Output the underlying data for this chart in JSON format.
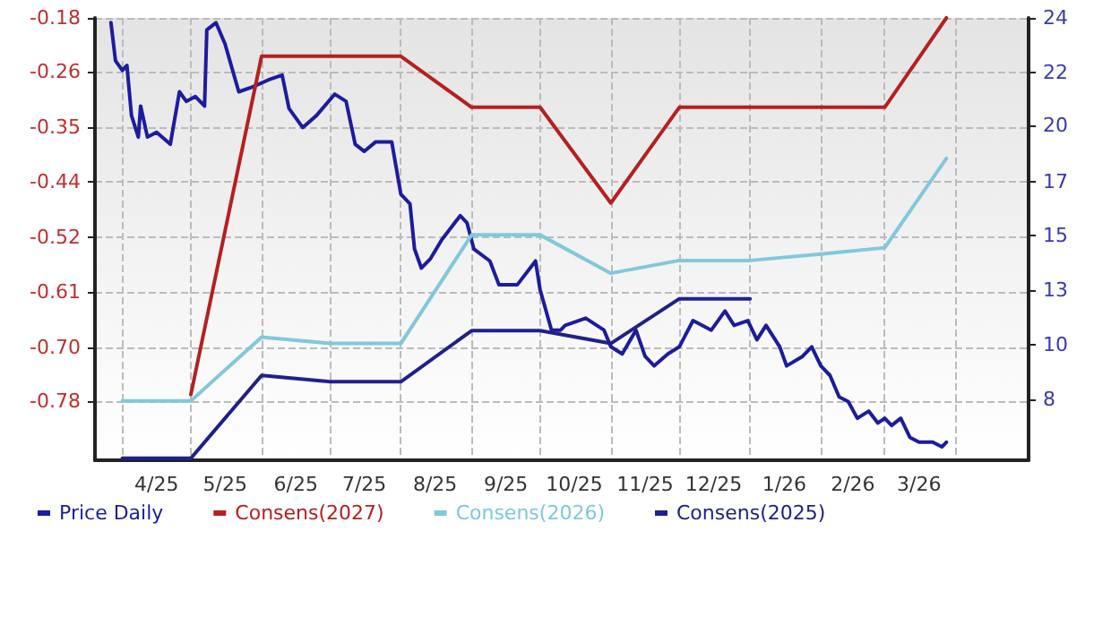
{
  "chart_data": {
    "type": "line",
    "xlim": [
      "2025-03-20",
      "2026-05-03"
    ],
    "xticks": [
      {
        "value": "2025-04-01",
        "label": null
      },
      {
        "value": "2025-04-16",
        "label": "4/25"
      },
      {
        "value": "2025-05-01",
        "label": null
      },
      {
        "value": "2025-05-16",
        "label": "5/25"
      },
      {
        "value": "2025-06-01",
        "label": null
      },
      {
        "value": "2025-06-16",
        "label": "6/25"
      },
      {
        "value": "2025-07-01",
        "label": null
      },
      {
        "value": "2025-07-16",
        "label": "7/25"
      },
      {
        "value": "2025-08-01",
        "label": null
      },
      {
        "value": "2025-08-16",
        "label": "8/25"
      },
      {
        "value": "2025-09-01",
        "label": null
      },
      {
        "value": "2025-09-16",
        "label": "9/25"
      },
      {
        "value": "2025-10-01",
        "label": null
      },
      {
        "value": "2025-10-16",
        "label": "10/25"
      },
      {
        "value": "2025-11-01",
        "label": null
      },
      {
        "value": "2025-11-16",
        "label": "11/25"
      },
      {
        "value": "2025-12-01",
        "label": null
      },
      {
        "value": "2025-12-16",
        "label": "12/25"
      },
      {
        "value": "2026-01-01",
        "label": null
      },
      {
        "value": "2026-01-16",
        "label": "1/26"
      },
      {
        "value": "2026-02-01",
        "label": null
      },
      {
        "value": "2026-02-15",
        "label": "2/26"
      },
      {
        "value": "2026-03-01",
        "label": null
      },
      {
        "value": "2026-03-16",
        "label": "3/26"
      },
      {
        "value": "2026-04-01",
        "label": null
      }
    ],
    "ylim": [
      -0.873,
      -0.18
    ],
    "yticks": [
      -0.18,
      {
        "value": -0.264,
        "label": "-0.26"
      },
      {
        "value": -0.351,
        "label": "-0.35"
      },
      {
        "value": -0.437,
        "label": "-0.44"
      },
      {
        "value": -0.523,
        "label": "-0.52"
      },
      {
        "value": -0.609,
        "label": "-0.61"
      },
      {
        "value": -0.696,
        "label": "-0.70"
      },
      -0.78
    ],
    "y2lim": [
      5.44,
      24
    ],
    "y2ticks": [
      24,
      {
        "value": 21.71,
        "label": "22"
      },
      {
        "value": 19.5,
        "label": "20"
      },
      {
        "value": 17.14,
        "label": "17"
      },
      {
        "value": 14.86,
        "label": "15"
      },
      {
        "value": 12.57,
        "label": "13"
      },
      {
        "value": 10.29,
        "label": "10"
      },
      8
    ],
    "grid": true,
    "legend": "bottom left",
    "marker": "none",
    "line_style": "solid",
    "series": [
      {
        "name": "Price Daily",
        "color": "#1c1ca0",
        "axis": "y2",
        "x": [
          "2025-03-27",
          "2025-03-29",
          "2025-04-01",
          "2025-04-03",
          "2025-04-05",
          "2025-04-08",
          "2025-04-09",
          "2025-04-12",
          "2025-04-16",
          "2025-04-22",
          "2025-04-26",
          "2025-04-29",
          "2025-05-03",
          "2025-05-07",
          "2025-05-08",
          "2025-05-12",
          "2025-05-16",
          "2025-05-22",
          "2025-05-28",
          "2025-06-04",
          "2025-06-10",
          "2025-06-13",
          "2025-06-19",
          "2025-06-25",
          "2025-07-03",
          "2025-07-08",
          "2025-07-12",
          "2025-07-16",
          "2025-07-21",
          "2025-07-28",
          "2025-08-01",
          "2025-08-05",
          "2025-08-07",
          "2025-08-10",
          "2025-08-14",
          "2025-08-19",
          "2025-08-27",
          "2025-08-30",
          "2025-09-02",
          "2025-09-09",
          "2025-09-13",
          "2025-09-21",
          "2025-09-29",
          "2025-10-01",
          "2025-10-06",
          "2025-10-10",
          "2025-10-12",
          "2025-10-21",
          "2025-10-29",
          "2025-11-01",
          "2025-11-06",
          "2025-11-12",
          "2025-11-16",
          "2025-11-20",
          "2025-11-26",
          "2025-12-01",
          "2025-12-07",
          "2025-12-15",
          "2025-12-21",
          "2025-12-25",
          "2025-12-31",
          "2026-01-04",
          "2026-01-08",
          "2026-01-14",
          "2026-01-17",
          "2026-01-24",
          "2026-01-28",
          "2026-02-01",
          "2026-02-05",
          "2026-02-09",
          "2026-02-13",
          "2026-02-17",
          "2026-02-22",
          "2026-02-26",
          "2026-03-01",
          "2026-03-04",
          "2026-03-08",
          "2026-03-12",
          "2026-03-16",
          "2026-03-22",
          "2026-03-26",
          "2026-03-28"
        ],
        "values": [
          23.8,
          22.2,
          21.8,
          22.0,
          19.9,
          19.0,
          20.3,
          19.0,
          19.2,
          18.7,
          20.9,
          20.5,
          20.7,
          20.3,
          23.5,
          23.8,
          22.9,
          20.9,
          21.1,
          21.4,
          21.6,
          20.2,
          19.4,
          19.9,
          20.8,
          20.5,
          18.7,
          18.4,
          18.8,
          18.8,
          16.6,
          16.2,
          14.3,
          13.5,
          13.9,
          14.7,
          15.7,
          15.4,
          14.3,
          13.8,
          12.8,
          12.8,
          13.8,
          12.6,
          10.9,
          10.9,
          11.1,
          11.4,
          10.9,
          10.2,
          9.9,
          10.9,
          9.8,
          9.4,
          9.9,
          10.2,
          11.3,
          10.9,
          11.7,
          11.1,
          11.3,
          10.5,
          11.1,
          10.2,
          9.4,
          9.8,
          10.2,
          9.4,
          9.0,
          8.1,
          7.9,
          7.2,
          7.5,
          7.0,
          7.2,
          6.9,
          7.2,
          6.4,
          6.2,
          6.2,
          6.0,
          6.2
        ]
      },
      {
        "name": "Consens(2027)",
        "color": "#b52020",
        "x": [
          "2025-05-01",
          "2025-06-01",
          "2025-08-01",
          "2025-09-01",
          "2025-10-01",
          "2025-11-01",
          "2025-12-01",
          "2026-03-01",
          "2026-03-28"
        ],
        "values": [
          -0.77,
          -0.24,
          -0.24,
          -0.32,
          -0.32,
          -0.47,
          -0.32,
          -0.32,
          -0.18
        ]
      },
      {
        "name": "Consens(2026)",
        "color": "#80c8dc",
        "x": [
          "2025-04-01",
          "2025-05-01",
          "2025-06-01",
          "2025-07-01",
          "2025-08-01",
          "2025-09-01",
          "2025-10-01",
          "2025-11-01",
          "2025-12-01",
          "2026-01-01",
          "2026-02-01",
          "2026-03-01",
          "2026-03-28"
        ],
        "values": [
          -0.78,
          -0.78,
          -0.68,
          -0.69,
          -0.69,
          -0.52,
          -0.52,
          -0.58,
          -0.56,
          -0.56,
          -0.55,
          -0.54,
          -0.4
        ]
      },
      {
        "name": "Consens(2025)",
        "color": "#20208c",
        "x": [
          "2025-04-01",
          "2025-05-01",
          "2025-06-01",
          "2025-07-01",
          "2025-08-01",
          "2025-09-01",
          "2025-10-01",
          "2025-11-01",
          "2025-12-01",
          "2026-01-01"
        ],
        "values": [
          -0.87,
          -0.87,
          -0.74,
          -0.75,
          -0.75,
          -0.67,
          -0.67,
          -0.69,
          -0.62,
          -0.62
        ]
      }
    ]
  }
}
